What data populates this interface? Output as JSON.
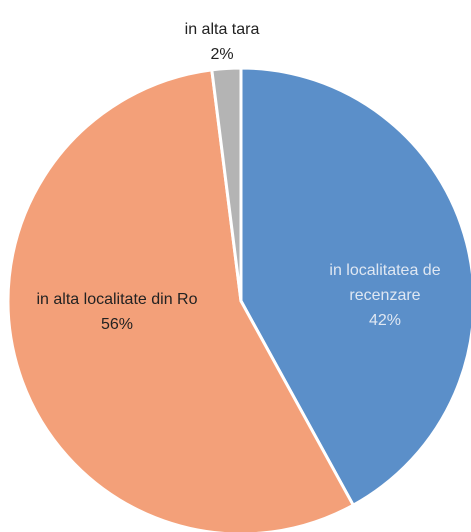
{
  "chart_data": {
    "type": "pie",
    "categories": [
      "in localitatea de recenzare",
      "in alta localitate din Ro",
      "in alta tara"
    ],
    "values": [
      42,
      56,
      2
    ],
    "value_labels": [
      "42%",
      "56%",
      "2%"
    ],
    "colors": [
      "#5b8fc9",
      "#f3a079",
      "#b4b4b4"
    ]
  }
}
